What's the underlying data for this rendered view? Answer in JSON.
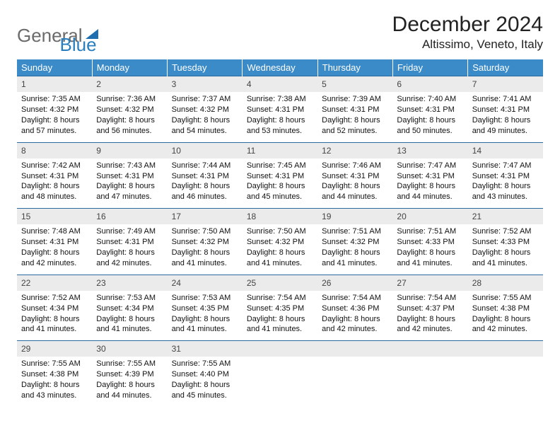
{
  "logo": {
    "text_gray": "General",
    "text_blue": "Blue",
    "gray_color": "#6b6b6b",
    "blue_color": "#2a7fbf",
    "icon_color": "#1f6fb0"
  },
  "header": {
    "month_title": "December 2024",
    "location": "Altissimo, Veneto, Italy",
    "title_fontsize": 30,
    "location_fontsize": 17
  },
  "colors": {
    "header_row_bg": "#3b8bc9",
    "header_row_text": "#ffffff",
    "daynum_bg": "#ebebeb",
    "row_border": "#2a6aa0",
    "page_bg": "#ffffff"
  },
  "weekdays": [
    "Sunday",
    "Monday",
    "Tuesday",
    "Wednesday",
    "Thursday",
    "Friday",
    "Saturday"
  ],
  "weeks": [
    [
      {
        "day": "1",
        "sunrise": "Sunrise: 7:35 AM",
        "sunset": "Sunset: 4:32 PM",
        "daylight": "Daylight: 8 hours and 57 minutes."
      },
      {
        "day": "2",
        "sunrise": "Sunrise: 7:36 AM",
        "sunset": "Sunset: 4:32 PM",
        "daylight": "Daylight: 8 hours and 56 minutes."
      },
      {
        "day": "3",
        "sunrise": "Sunrise: 7:37 AM",
        "sunset": "Sunset: 4:32 PM",
        "daylight": "Daylight: 8 hours and 54 minutes."
      },
      {
        "day": "4",
        "sunrise": "Sunrise: 7:38 AM",
        "sunset": "Sunset: 4:31 PM",
        "daylight": "Daylight: 8 hours and 53 minutes."
      },
      {
        "day": "5",
        "sunrise": "Sunrise: 7:39 AM",
        "sunset": "Sunset: 4:31 PM",
        "daylight": "Daylight: 8 hours and 52 minutes."
      },
      {
        "day": "6",
        "sunrise": "Sunrise: 7:40 AM",
        "sunset": "Sunset: 4:31 PM",
        "daylight": "Daylight: 8 hours and 50 minutes."
      },
      {
        "day": "7",
        "sunrise": "Sunrise: 7:41 AM",
        "sunset": "Sunset: 4:31 PM",
        "daylight": "Daylight: 8 hours and 49 minutes."
      }
    ],
    [
      {
        "day": "8",
        "sunrise": "Sunrise: 7:42 AM",
        "sunset": "Sunset: 4:31 PM",
        "daylight": "Daylight: 8 hours and 48 minutes."
      },
      {
        "day": "9",
        "sunrise": "Sunrise: 7:43 AM",
        "sunset": "Sunset: 4:31 PM",
        "daylight": "Daylight: 8 hours and 47 minutes."
      },
      {
        "day": "10",
        "sunrise": "Sunrise: 7:44 AM",
        "sunset": "Sunset: 4:31 PM",
        "daylight": "Daylight: 8 hours and 46 minutes."
      },
      {
        "day": "11",
        "sunrise": "Sunrise: 7:45 AM",
        "sunset": "Sunset: 4:31 PM",
        "daylight": "Daylight: 8 hours and 45 minutes."
      },
      {
        "day": "12",
        "sunrise": "Sunrise: 7:46 AM",
        "sunset": "Sunset: 4:31 PM",
        "daylight": "Daylight: 8 hours and 44 minutes."
      },
      {
        "day": "13",
        "sunrise": "Sunrise: 7:47 AM",
        "sunset": "Sunset: 4:31 PM",
        "daylight": "Daylight: 8 hours and 44 minutes."
      },
      {
        "day": "14",
        "sunrise": "Sunrise: 7:47 AM",
        "sunset": "Sunset: 4:31 PM",
        "daylight": "Daylight: 8 hours and 43 minutes."
      }
    ],
    [
      {
        "day": "15",
        "sunrise": "Sunrise: 7:48 AM",
        "sunset": "Sunset: 4:31 PM",
        "daylight": "Daylight: 8 hours and 42 minutes."
      },
      {
        "day": "16",
        "sunrise": "Sunrise: 7:49 AM",
        "sunset": "Sunset: 4:31 PM",
        "daylight": "Daylight: 8 hours and 42 minutes."
      },
      {
        "day": "17",
        "sunrise": "Sunrise: 7:50 AM",
        "sunset": "Sunset: 4:32 PM",
        "daylight": "Daylight: 8 hours and 41 minutes."
      },
      {
        "day": "18",
        "sunrise": "Sunrise: 7:50 AM",
        "sunset": "Sunset: 4:32 PM",
        "daylight": "Daylight: 8 hours and 41 minutes."
      },
      {
        "day": "19",
        "sunrise": "Sunrise: 7:51 AM",
        "sunset": "Sunset: 4:32 PM",
        "daylight": "Daylight: 8 hours and 41 minutes."
      },
      {
        "day": "20",
        "sunrise": "Sunrise: 7:51 AM",
        "sunset": "Sunset: 4:33 PM",
        "daylight": "Daylight: 8 hours and 41 minutes."
      },
      {
        "day": "21",
        "sunrise": "Sunrise: 7:52 AM",
        "sunset": "Sunset: 4:33 PM",
        "daylight": "Daylight: 8 hours and 41 minutes."
      }
    ],
    [
      {
        "day": "22",
        "sunrise": "Sunrise: 7:52 AM",
        "sunset": "Sunset: 4:34 PM",
        "daylight": "Daylight: 8 hours and 41 minutes."
      },
      {
        "day": "23",
        "sunrise": "Sunrise: 7:53 AM",
        "sunset": "Sunset: 4:34 PM",
        "daylight": "Daylight: 8 hours and 41 minutes."
      },
      {
        "day": "24",
        "sunrise": "Sunrise: 7:53 AM",
        "sunset": "Sunset: 4:35 PM",
        "daylight": "Daylight: 8 hours and 41 minutes."
      },
      {
        "day": "25",
        "sunrise": "Sunrise: 7:54 AM",
        "sunset": "Sunset: 4:35 PM",
        "daylight": "Daylight: 8 hours and 41 minutes."
      },
      {
        "day": "26",
        "sunrise": "Sunrise: 7:54 AM",
        "sunset": "Sunset: 4:36 PM",
        "daylight": "Daylight: 8 hours and 42 minutes."
      },
      {
        "day": "27",
        "sunrise": "Sunrise: 7:54 AM",
        "sunset": "Sunset: 4:37 PM",
        "daylight": "Daylight: 8 hours and 42 minutes."
      },
      {
        "day": "28",
        "sunrise": "Sunrise: 7:55 AM",
        "sunset": "Sunset: 4:38 PM",
        "daylight": "Daylight: 8 hours and 42 minutes."
      }
    ],
    [
      {
        "day": "29",
        "sunrise": "Sunrise: 7:55 AM",
        "sunset": "Sunset: 4:38 PM",
        "daylight": "Daylight: 8 hours and 43 minutes."
      },
      {
        "day": "30",
        "sunrise": "Sunrise: 7:55 AM",
        "sunset": "Sunset: 4:39 PM",
        "daylight": "Daylight: 8 hours and 44 minutes."
      },
      {
        "day": "31",
        "sunrise": "Sunrise: 7:55 AM",
        "sunset": "Sunset: 4:40 PM",
        "daylight": "Daylight: 8 hours and 45 minutes."
      },
      null,
      null,
      null,
      null
    ]
  ]
}
